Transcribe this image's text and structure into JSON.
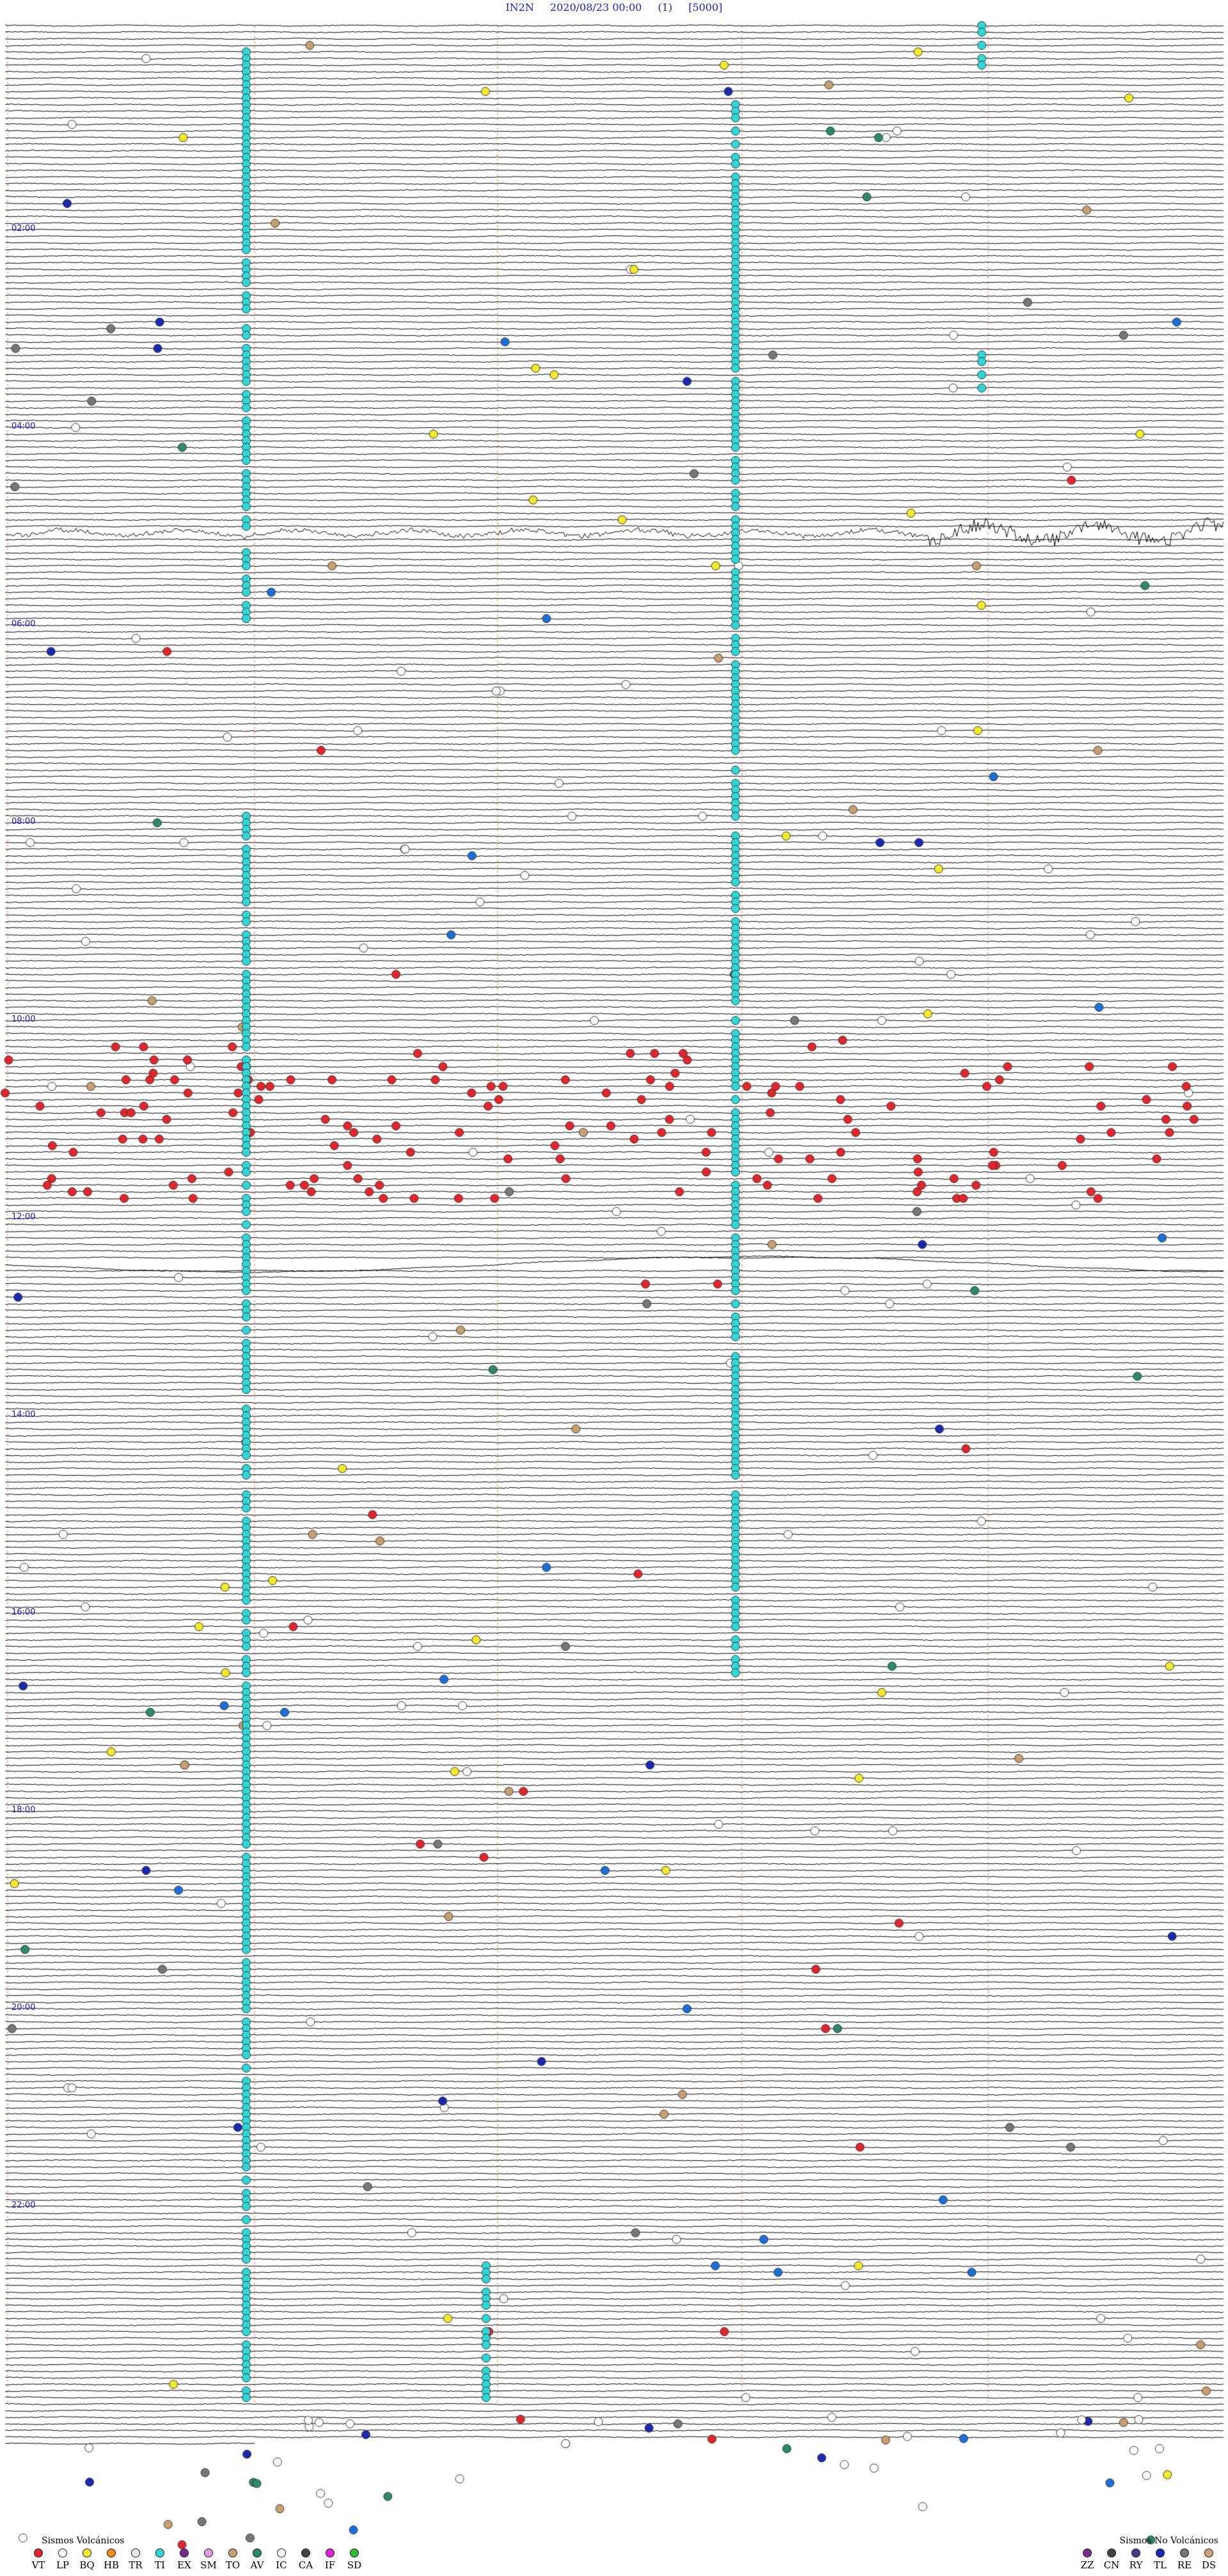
{
  "header": {
    "station": "IN2N",
    "datetime": "2020/08/23 00:00",
    "channel": "(1)",
    "scale": "[5000]"
  },
  "hour_labels": [
    "02:00",
    "04:00",
    "06:00",
    "08:00",
    "10:00",
    "12:00",
    "14:00",
    "16:00",
    "18:00",
    "20:00",
    "22:00"
  ],
  "legend_volcanic": {
    "title": "Sismos Volcánicos",
    "items": [
      {
        "code": "VT",
        "color": "#e3262b"
      },
      {
        "code": "LP",
        "color": "#ffffff"
      },
      {
        "code": "BQ",
        "color": "#f4ea2a"
      },
      {
        "code": "HB",
        "color": "#f08a1c"
      },
      {
        "code": "TR",
        "color": "#e8e8e8"
      },
      {
        "code": "TI",
        "color": "#2fd8d8"
      },
      {
        "code": "EX",
        "color": "#7a2a8c"
      },
      {
        "code": "SM",
        "color": "#e09ae0"
      },
      {
        "code": "TO",
        "color": "#c8a070"
      },
      {
        "code": "AV",
        "color": "#2a8a6a"
      },
      {
        "code": "IC",
        "color": "#ffffff"
      },
      {
        "code": "CA",
        "color": "#444444"
      },
      {
        "code": "IF",
        "color": "#e020e0"
      },
      {
        "code": "SD",
        "color": "#38b838"
      }
    ]
  },
  "legend_nonvolcanic": {
    "title": "Sismos No Volcánicos",
    "items": [
      {
        "code": "ZZ",
        "color": "#7a2a8c"
      },
      {
        "code": "CN",
        "color": "#444444"
      },
      {
        "code": "RY",
        "color": "#4a3a8a"
      },
      {
        "code": "TL",
        "color": "#1a2ab0"
      },
      {
        "code": "RE",
        "color": "#777777"
      },
      {
        "code": "DS",
        "color": "#d0a080"
      }
    ]
  }
}
